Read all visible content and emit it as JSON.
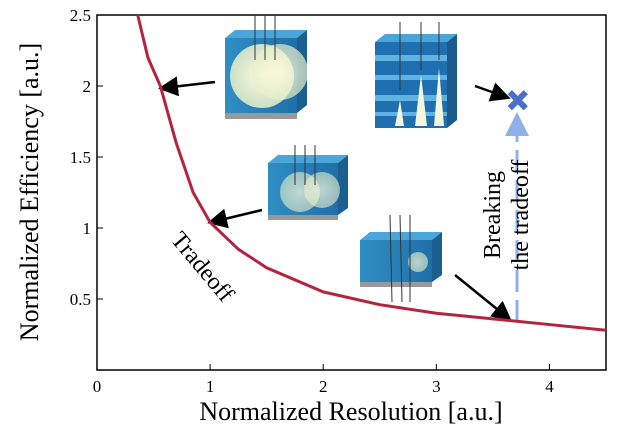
{
  "chart_data": {
    "type": "line",
    "xlabel": "Normalized Resolution [a.u.]",
    "ylabel": "Normalized Efficiency [a.u.]",
    "x": [
      0.36,
      0.45,
      0.56,
      0.7,
      0.85,
      1.0,
      1.25,
      1.5,
      2,
      2.5,
      3,
      3.5,
      4,
      4.5
    ],
    "series": [
      {
        "color": "#b5243f",
        "values": [
          2.5,
          2.2,
          2.0,
          1.6,
          1.25,
          1.04,
          0.85,
          0.72,
          0.55,
          0.46,
          0.4,
          0.36,
          0.32,
          0.28
        ]
      }
    ],
    "marker": {
      "x": 3.72,
      "y": 1.9,
      "color": "#4a6fc4"
    },
    "xlim": [
      0,
      4.5
    ],
    "ylim": [
      0,
      2.5
    ],
    "xticks": [
      0,
      1,
      2,
      3,
      4
    ],
    "yticks": [
      0.5,
      1,
      1.5,
      2,
      2.5
    ],
    "annotations": {
      "tradeoff": "Tradeoff",
      "breaking": [
        "Breaking",
        "the tradeoff"
      ]
    }
  }
}
